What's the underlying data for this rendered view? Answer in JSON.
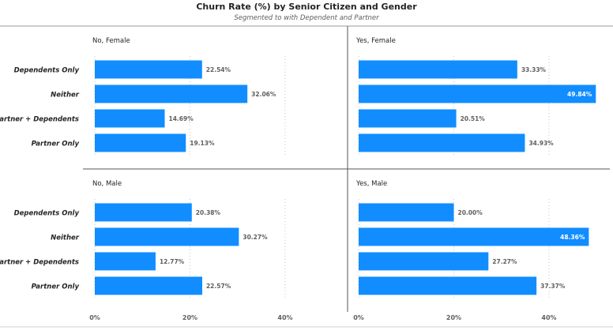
{
  "title": "Churn Rate (%) by Senior Citizen and Gender",
  "subtitle": "Segmented to with Dependent and Partner",
  "colors": {
    "bar": "#118DFF",
    "grid": "#c8c6c4",
    "divider": "#555555",
    "text": "#252423"
  },
  "chart_data": {
    "type": "bar",
    "orientation": "horizontal",
    "title": "Churn Rate (%) by Senior Citizen and Gender",
    "subtitle": "Segmented to with Dependent and Partner",
    "categories": [
      "Dependents Only",
      "Neither",
      "Partner + Dependents",
      "Partner Only"
    ],
    "x_ticks": [
      "0%",
      "20%",
      "40%"
    ],
    "xlim": [
      0,
      50
    ],
    "panels": [
      {
        "name": "No, Female",
        "values": [
          22.54,
          32.06,
          14.69,
          19.13
        ],
        "labels": [
          "22.54%",
          "32.06%",
          "14.69%",
          "19.13%"
        ]
      },
      {
        "name": "Yes, Female",
        "values": [
          33.33,
          49.84,
          20.51,
          34.93
        ],
        "labels": [
          "33.33%",
          "49.84%",
          "20.51%",
          "34.93%"
        ]
      },
      {
        "name": "No, Male",
        "values": [
          20.38,
          30.27,
          12.77,
          22.57
        ],
        "labels": [
          "20.38%",
          "30.27%",
          "12.77%",
          "22.57%"
        ]
      },
      {
        "name": "Yes, Male",
        "values": [
          20.0,
          48.36,
          27.27,
          37.37
        ],
        "labels": [
          "20.00%",
          "48.36%",
          "27.27%",
          "37.37%"
        ]
      }
    ]
  }
}
